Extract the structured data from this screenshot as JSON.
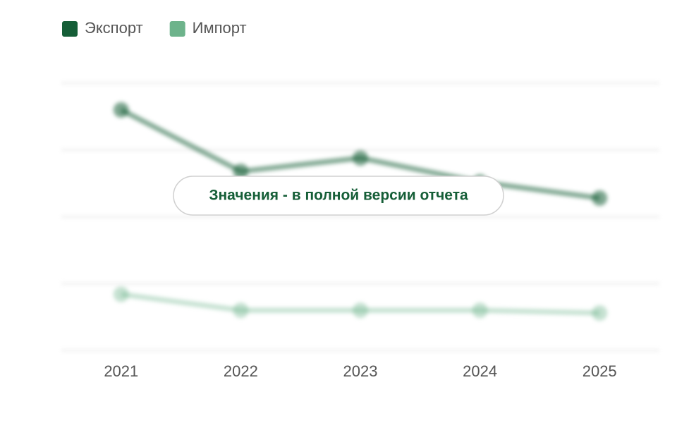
{
  "chart_data": {
    "type": "line",
    "note": "Значения - в полной версии отчета",
    "categories": [
      "2021",
      "2022",
      "2023",
      "2024",
      "2025"
    ],
    "series": [
      {
        "name": "Экспорт",
        "color": "#155e37",
        "values": [
          90,
          67,
          72,
          63,
          57
        ]
      },
      {
        "name": "Импорт",
        "color": "#6db38b",
        "values": [
          21,
          15,
          15,
          15,
          14
        ]
      }
    ],
    "ylim": [
      0,
      100
    ],
    "grid": true
  }
}
